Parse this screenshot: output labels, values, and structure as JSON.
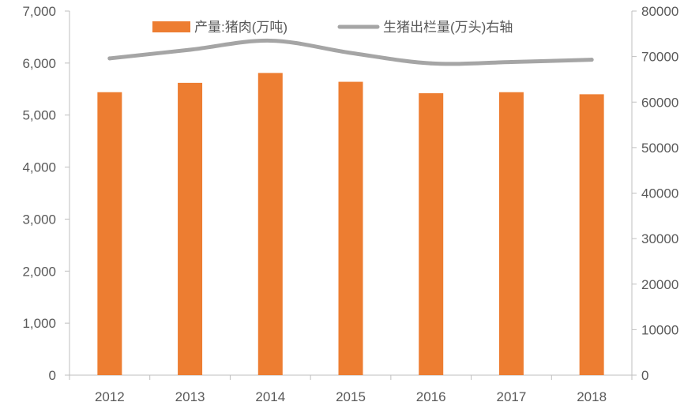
{
  "chart_data": {
    "type": "bar",
    "categories": [
      "2012",
      "2013",
      "2014",
      "2015",
      "2016",
      "2017",
      "2018"
    ],
    "series": [
      {
        "name": "产量:猪肉(万吨)",
        "type": "bar",
        "axis": "left",
        "color": "#ED7D31",
        "values": [
          5440,
          5620,
          5810,
          5640,
          5420,
          5440,
          5400
        ]
      },
      {
        "name": "生猪出栏量(万头)右轴",
        "type": "line",
        "axis": "right",
        "color": "#A5A5A5",
        "values": [
          69600,
          71500,
          73500,
          70800,
          68500,
          68800,
          69300
        ]
      }
    ],
    "y_left": {
      "ylim": [
        0,
        7000
      ],
      "ticks": [
        0,
        1000,
        2000,
        3000,
        4000,
        5000,
        6000,
        7000
      ],
      "tick_labels": [
        "0",
        "1,000",
        "2,000",
        "3,000",
        "4,000",
        "5,000",
        "6,000",
        "7,000"
      ]
    },
    "y_right": {
      "ylim": [
        0,
        80000
      ],
      "ticks": [
        0,
        10000,
        20000,
        30000,
        40000,
        50000,
        60000,
        70000,
        80000
      ],
      "tick_labels": [
        "0",
        "10000",
        "20000",
        "30000",
        "40000",
        "50000",
        "60000",
        "70000",
        "80000"
      ]
    },
    "grid": false,
    "legend_position": "top"
  }
}
